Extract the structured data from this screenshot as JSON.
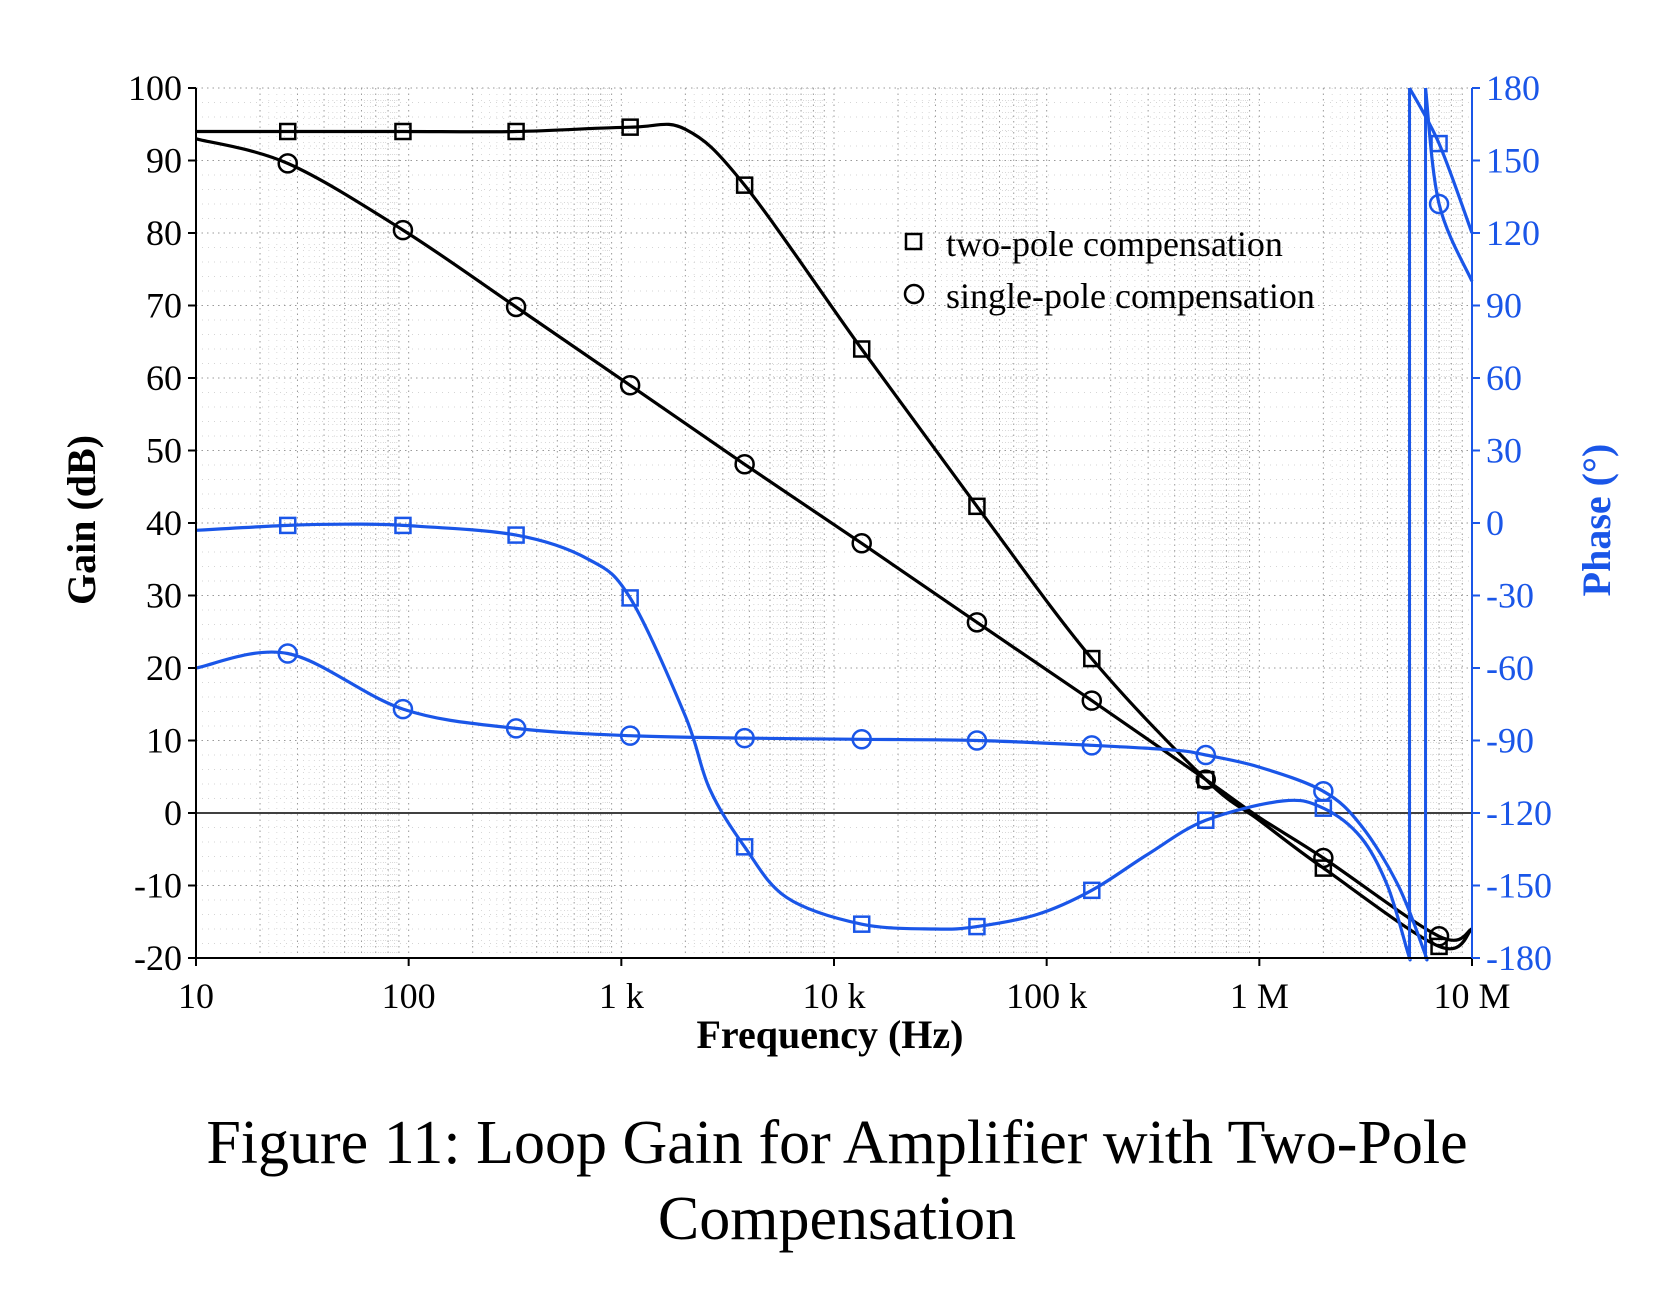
{
  "caption": {
    "line1": "Figure 11: Loop Gain for Amplifier with Two-Pole",
    "line2": "Compensation"
  },
  "chart_data": {
    "type": "line",
    "title": "",
    "xlabel": "Frequency (Hz)",
    "ylabel_left": "Gain (dB)",
    "ylabel_right": "Phase (°)",
    "x_scale": "log",
    "xlim": [
      10,
      10000000
    ],
    "ylim_left": [
      -20,
      100
    ],
    "ylim_right": [
      -180,
      180
    ],
    "x_ticks": [
      10,
      100,
      1000,
      10000,
      100000,
      1000000,
      10000000
    ],
    "x_tick_labels": [
      "10",
      "100",
      "1 k",
      "10 k",
      "100 k",
      "1 M",
      "10 M"
    ],
    "y_left_ticks": [
      100,
      90,
      80,
      70,
      60,
      50,
      40,
      30,
      20,
      10,
      0,
      -10,
      -20
    ],
    "y_left_tick_labels": [
      "100",
      "90",
      "80",
      "70",
      "60",
      "50",
      "40",
      "30",
      "20",
      "10",
      "0",
      "-10",
      "-20"
    ],
    "y_right_ticks": [
      180,
      150,
      120,
      90,
      60,
      30,
      0,
      -30,
      -60,
      -90,
      -120,
      -150,
      -180
    ],
    "y_right_tick_labels": [
      "180",
      "150",
      "120",
      "90",
      "60",
      "30",
      "0",
      "-30",
      "-60",
      "-90",
      "-120",
      "-150",
      "-180"
    ],
    "grid": true,
    "legend": {
      "placement": "top-right",
      "entries": [
        {
          "marker": "square",
          "label": "two-pole compensation"
        },
        {
          "marker": "circle",
          "label": "single-pole compensation"
        }
      ]
    },
    "colors": {
      "gain": "#000000",
      "phase": "#1a56e8"
    },
    "series": [
      {
        "legend_entry": "two-pole compensation",
        "quantity": "gain",
        "axis": "left",
        "marker": "square",
        "x": [
          10,
          27,
          94,
          320,
          1100,
          2000,
          3800,
          13500,
          47000,
          163000,
          560000,
          1000000,
          2000000,
          7000000,
          10000000
        ],
        "y": [
          94,
          94,
          94,
          94,
          94.6,
          94.3,
          86.6,
          64,
          42.3,
          21.3,
          4.6,
          -1,
          -7.6,
          -18.4,
          -16
        ]
      },
      {
        "legend_entry": "single-pole compensation",
        "quantity": "gain",
        "axis": "left",
        "marker": "circle",
        "x": [
          10,
          27,
          94,
          320,
          1100,
          3800,
          13500,
          47000,
          163000,
          560000,
          1000000,
          2000000,
          7000000,
          10000000
        ],
        "y": [
          93,
          89.6,
          80.4,
          69.8,
          59,
          48.1,
          37.2,
          26.3,
          15.5,
          4.6,
          -0.6,
          -6.2,
          -17,
          -16
        ]
      },
      {
        "legend_entry": "two-pole compensation",
        "quantity": "phase",
        "axis": "right",
        "marker": "square",
        "x": [
          10,
          27,
          50,
          94,
          320,
          700,
          1100,
          2000,
          2600,
          3800,
          6000,
          13500,
          30000,
          47000,
          90000,
          163000,
          300000,
          560000,
          1300000,
          2000000,
          3000000,
          4000000,
          5000000,
          7000000,
          10000000
        ],
        "y": [
          -3,
          -1,
          -0.5,
          -1,
          -5,
          -15,
          -31,
          -80,
          -110,
          -134,
          -155,
          -166,
          -168,
          -167,
          -162,
          -152,
          -137,
          -123,
          -115,
          -118,
          -130,
          -150,
          -178,
          157,
          120
        ]
      },
      {
        "legend_entry": "single-pole compensation",
        "quantity": "phase",
        "axis": "right",
        "marker": "circle",
        "x": [
          10,
          27,
          94,
          320,
          1100,
          3800,
          13500,
          47000,
          163000,
          400000,
          560000,
          1000000,
          2000000,
          3000000,
          4500000,
          6000000,
          7000000,
          10000000
        ],
        "y": [
          -60,
          -54,
          -77,
          -85,
          -88,
          -89,
          -89.5,
          -90,
          -92,
          -94,
          -96,
          -101,
          -111,
          -125,
          -150,
          -178,
          132,
          100
        ]
      }
    ]
  }
}
